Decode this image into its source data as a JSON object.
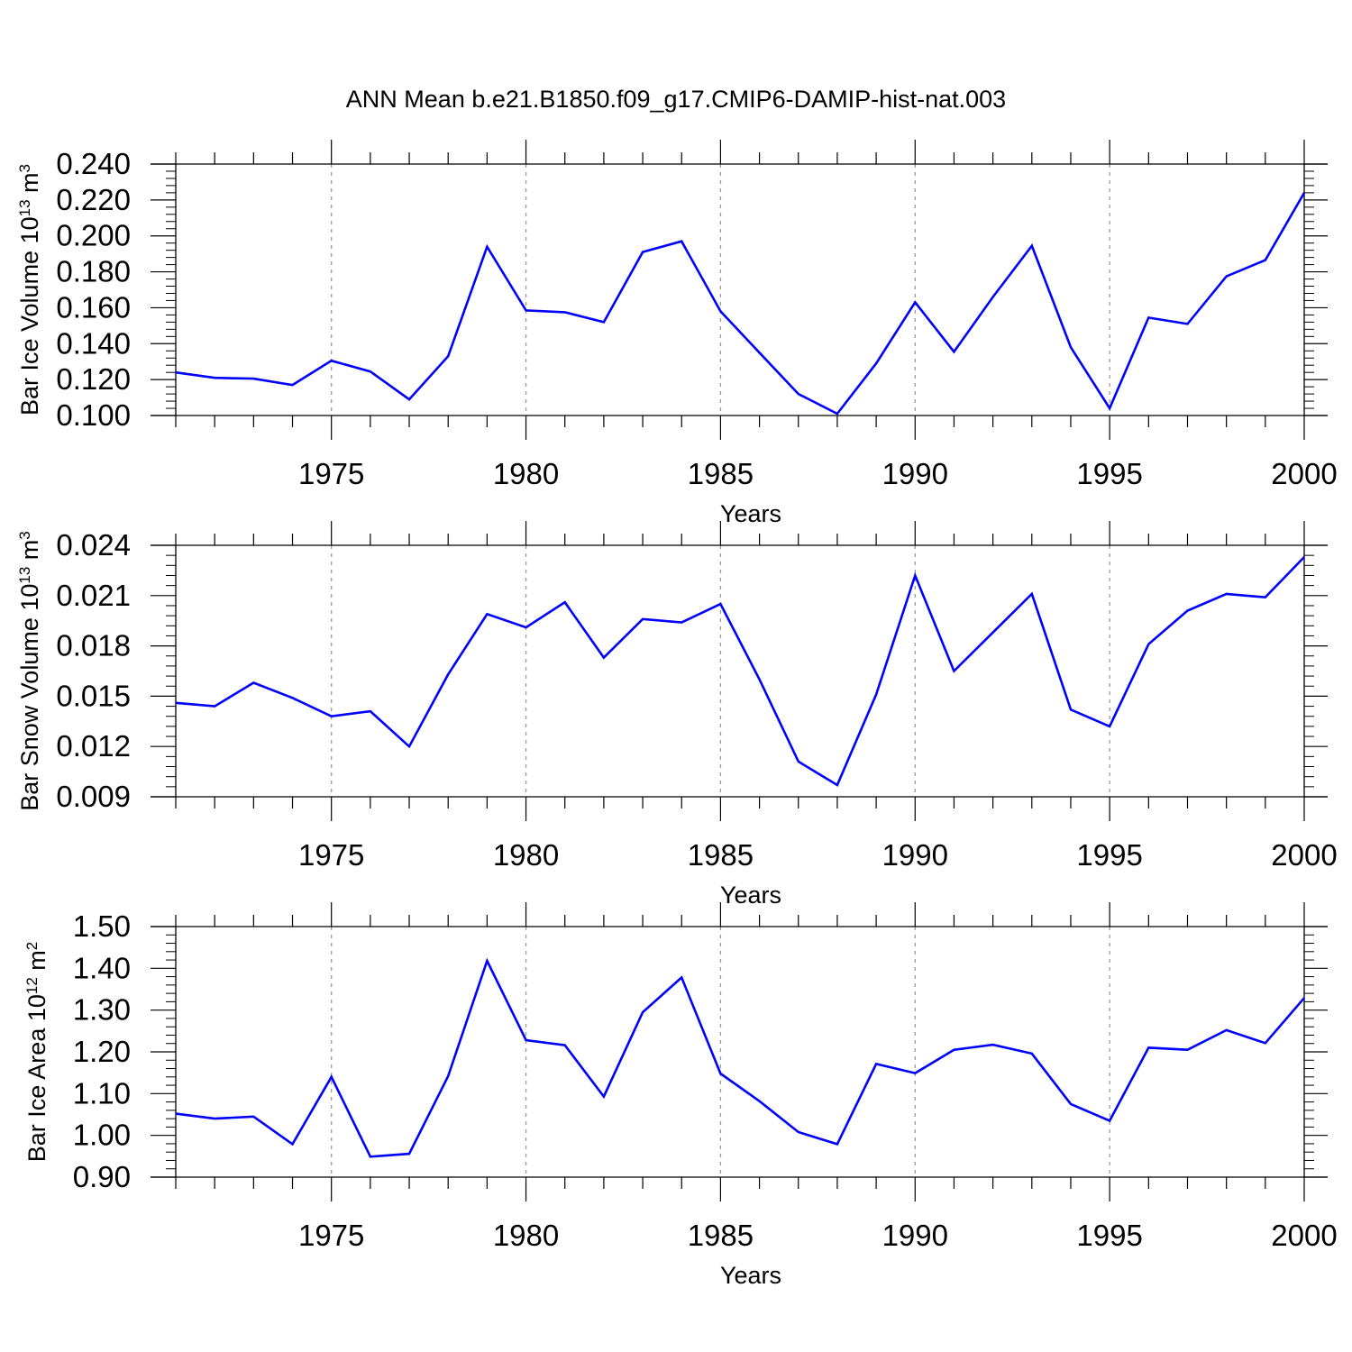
{
  "title": "ANN Mean b.e21.B1850.f09_g17.CMIP6-DAMIP-hist-nat.003",
  "colors": {
    "line": "#0000ff",
    "axis": "#000000",
    "grid": "#9a9a9a"
  },
  "chart_data": [
    {
      "type": "line",
      "ylabel": {
        "main": "Bar Ice Volume 10",
        "sup": "13",
        "after": " m",
        "sup2": "3"
      },
      "xlabel": "Years",
      "xlim": [
        1971,
        2000
      ],
      "xticks": [
        1975,
        1980,
        1985,
        1990,
        1995,
        2000
      ],
      "xtick_labels": [
        "1975",
        "1980",
        "1985",
        "1990",
        "1995",
        "2000"
      ],
      "ylim": [
        0.1,
        0.24
      ],
      "yticks": [
        0.1,
        0.12,
        0.14,
        0.16,
        0.18,
        0.2,
        0.22,
        0.24
      ],
      "ytick_labels": [
        "0.100",
        "0.120",
        "0.140",
        "0.160",
        "0.180",
        "0.200",
        "0.220",
        "0.240"
      ],
      "grid": "vertical dashed at labelled years",
      "series": [
        {
          "x": [
            1971,
            1972,
            1973,
            1974,
            1975,
            1976,
            1977,
            1978,
            1979,
            1980,
            1981,
            1982,
            1983,
            1984,
            1985,
            1986,
            1987,
            1988,
            1989,
            1990,
            1991,
            1992,
            1993,
            1994,
            1995,
            1996,
            1997,
            1998,
            1999,
            2000
          ],
          "y": [
            0.124,
            0.121,
            0.1205,
            0.117,
            0.1305,
            0.1245,
            0.109,
            0.133,
            0.194,
            0.1585,
            0.1575,
            0.152,
            0.191,
            0.197,
            0.158,
            0.135,
            0.112,
            0.101,
            0.129,
            0.163,
            0.1355,
            0.166,
            0.1945,
            0.138,
            0.104,
            0.1545,
            0.151,
            0.1775,
            0.1865,
            0.224
          ]
        }
      ]
    },
    {
      "type": "line",
      "ylabel": {
        "main": "Bar Snow Volume 10",
        "sup": "13",
        "after": " m",
        "sup2": "3"
      },
      "xlabel": "Years",
      "xlim": [
        1971,
        2000
      ],
      "xticks": [
        1975,
        1980,
        1985,
        1990,
        1995,
        2000
      ],
      "xtick_labels": [
        "1975",
        "1980",
        "1985",
        "1990",
        "1995",
        "2000"
      ],
      "ylim": [
        0.009,
        0.024
      ],
      "yticks": [
        0.009,
        0.012,
        0.015,
        0.018,
        0.021,
        0.024
      ],
      "ytick_labels": [
        "0.009",
        "0.012",
        "0.015",
        "0.018",
        "0.021",
        "0.024"
      ],
      "grid": "vertical dashed at labelled years",
      "series": [
        {
          "x": [
            1971,
            1972,
            1973,
            1974,
            1975,
            1976,
            1977,
            1978,
            1979,
            1980,
            1981,
            1982,
            1983,
            1984,
            1985,
            1986,
            1987,
            1988,
            1989,
            1990,
            1991,
            1992,
            1993,
            1994,
            1995,
            1996,
            1997,
            1998,
            1999,
            2000
          ],
          "y": [
            0.0146,
            0.0144,
            0.0158,
            0.0149,
            0.0138,
            0.0141,
            0.012,
            0.0163,
            0.0199,
            0.0191,
            0.0206,
            0.0173,
            0.0196,
            0.0194,
            0.0205,
            0.016,
            0.0111,
            0.0097,
            0.0151,
            0.0222,
            0.0165,
            0.0188,
            0.0211,
            0.0142,
            0.0132,
            0.0181,
            0.0201,
            0.0211,
            0.0209,
            0.0233
          ]
        }
      ]
    },
    {
      "type": "line",
      "ylabel": {
        "main": "Bar Ice Area 10",
        "sup": "12",
        "after": " m",
        "sup2": "2"
      },
      "xlabel": "Years",
      "xlim": [
        1971,
        2000
      ],
      "xticks": [
        1975,
        1980,
        1985,
        1990,
        1995,
        2000
      ],
      "xtick_labels": [
        "1975",
        "1980",
        "1985",
        "1990",
        "1995",
        "2000"
      ],
      "ylim": [
        0.9,
        1.5
      ],
      "yticks": [
        0.9,
        1.0,
        1.1,
        1.2,
        1.3,
        1.4,
        1.5
      ],
      "ytick_labels": [
        "0.90",
        "1.00",
        "1.10",
        "1.20",
        "1.30",
        "1.40",
        "1.50"
      ],
      "grid": "vertical dashed at labelled years",
      "series": [
        {
          "x": [
            1971,
            1972,
            1973,
            1974,
            1975,
            1976,
            1977,
            1978,
            1979,
            1980,
            1981,
            1982,
            1983,
            1984,
            1985,
            1986,
            1987,
            1988,
            1989,
            1990,
            1991,
            1992,
            1993,
            1994,
            1995,
            1996,
            1997,
            1998,
            1999,
            2000
          ],
          "y": [
            1.052,
            1.04,
            1.045,
            0.979,
            1.14,
            0.949,
            0.956,
            1.142,
            1.418,
            1.228,
            1.216,
            1.093,
            1.295,
            1.378,
            1.148,
            1.082,
            1.008,
            0.979,
            1.171,
            1.149,
            1.205,
            1.217,
            1.196,
            1.075,
            1.035,
            1.21,
            1.205,
            1.252,
            1.221,
            1.329
          ]
        }
      ]
    }
  ]
}
